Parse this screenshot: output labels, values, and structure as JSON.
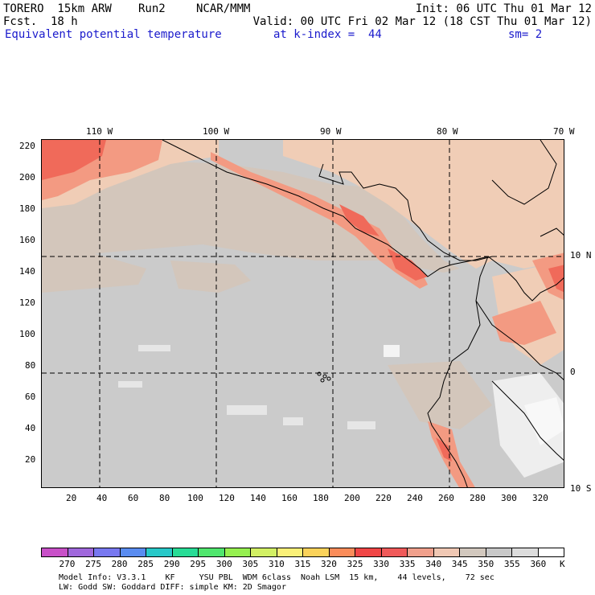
{
  "header": {
    "model": "TORERO  15km ARW",
    "run": "Run2",
    "org": "NCAR/MMM",
    "init": "Init: 06 UTC Thu 01 Mar 12",
    "fcst": "Fcst.  18 h",
    "valid": "Valid: 00 UTC Fri 02 Mar 12 (18 CST Thu 01 Mar 12)",
    "field": "Equivalent potential temperature",
    "level": "at k-index =  44",
    "smooth": "sm= 2"
  },
  "map": {
    "lon_labels": [
      "110 W",
      "100 W",
      "90 W",
      "80 W",
      "70 W"
    ],
    "lat_labels": [
      "10 N",
      "0",
      "10 S"
    ],
    "y_ticks": [
      "220",
      "200",
      "180",
      "160",
      "140",
      "120",
      "100",
      "80",
      "60",
      "40",
      "20"
    ],
    "x_ticks": [
      "20",
      "40",
      "60",
      "80",
      "100",
      "120",
      "140",
      "160",
      "180",
      "200",
      "220",
      "240",
      "260",
      "280",
      "300",
      "320"
    ],
    "grid_range_x": [
      0,
      335
    ],
    "grid_range_y": [
      0,
      224
    ],
    "coastline_color": "#000000",
    "gridline_style": "dashed"
  },
  "colorbar": {
    "levels": [
      "270",
      "275",
      "280",
      "285",
      "290",
      "295",
      "300",
      "305",
      "310",
      "315",
      "320",
      "325",
      "330",
      "335",
      "340",
      "345",
      "350",
      "355",
      "360"
    ],
    "unit": "K",
    "colors": [
      "#c850c8",
      "#a068dc",
      "#7878f0",
      "#5a8cf0",
      "#28c8c8",
      "#28dc96",
      "#50e66e",
      "#96f050",
      "#d2f064",
      "#faf078",
      "#fad25a",
      "#fa8c5a",
      "#f04646",
      "#f05a5a",
      "#f0a08c",
      "#f0c8b4",
      "#d2c8be",
      "#c8c8c8",
      "#dcdcdc",
      "#ffffff"
    ]
  },
  "footer": {
    "line1": "Model Info: V3.3.1    KF     YSU PBL  WDM 6class  Noah LSM  15 km,    44 levels,    72 sec",
    "line2": "LW: Godd SW: Goddard DIFF: simple KM: 2D Smagor"
  }
}
